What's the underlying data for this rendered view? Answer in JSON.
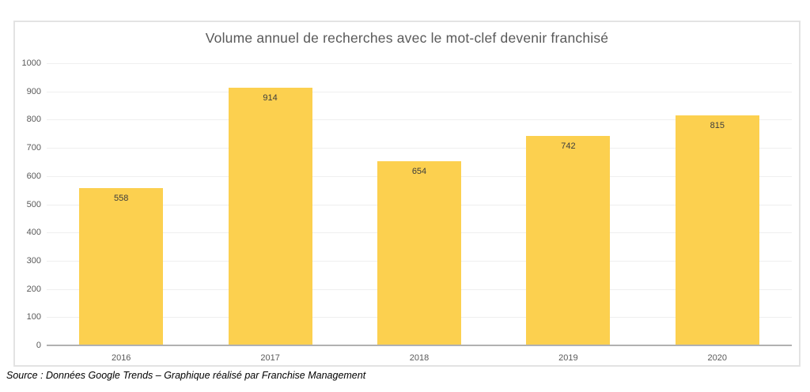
{
  "chart_data": {
    "type": "bar",
    "title": "Volume annuel de recherches avec le mot-clef devenir franchisé",
    "categories": [
      "2016",
      "2017",
      "2018",
      "2019",
      "2020"
    ],
    "values": [
      558,
      914,
      654,
      742,
      815
    ],
    "xlabel": "",
    "ylabel": "",
    "ylim": [
      0,
      1000
    ],
    "yticks": [
      0,
      100,
      200,
      300,
      400,
      500,
      600,
      700,
      800,
      900,
      1000
    ],
    "grid": true,
    "legend": false,
    "value_label_position": "inside-top",
    "bar_color": "#FCD04F"
  },
  "source": {
    "text": "Source : Données Google Trends – Graphique réalisé par Franchise Management"
  },
  "colors": {
    "bar_fill": "#FCD04F",
    "grid_line": "#EFEFEF",
    "axis_line": "#B1B1B1",
    "frame_border": "#E3E3E3",
    "title_text": "#595959",
    "tick_text": "#595959",
    "value_text": "#3C3C3C",
    "source_text": "#000000",
    "background": "#FFFFFF"
  }
}
